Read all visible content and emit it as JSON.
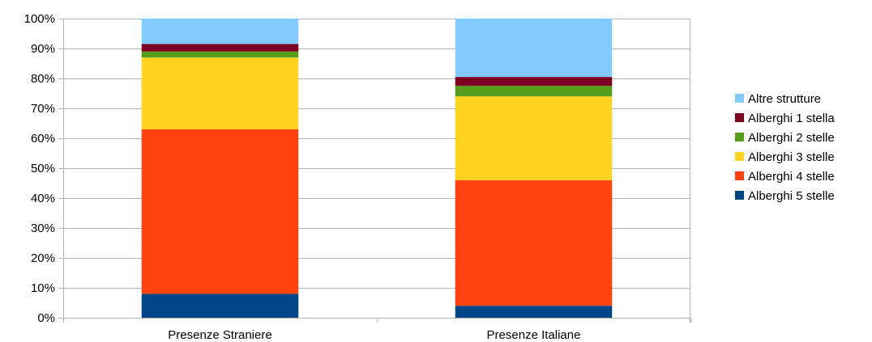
{
  "chart_data": {
    "type": "bar",
    "stacked": true,
    "normalized": true,
    "categories": [
      "Presenze Straniere",
      "Presenze Italiane"
    ],
    "series": [
      {
        "name": "Alberghi 5 stelle",
        "color": "#004586",
        "values": [
          8,
          4
        ]
      },
      {
        "name": "Alberghi 4 stelle",
        "color": "#ff420e",
        "values": [
          55,
          42
        ]
      },
      {
        "name": "Alberghi 3 stelle",
        "color": "#ffd320",
        "values": [
          24,
          28
        ]
      },
      {
        "name": "Alberghi 2 stelle",
        "color": "#579d1c",
        "values": [
          2,
          3.5
        ]
      },
      {
        "name": "Alberghi 1 stella",
        "color": "#7e0021",
        "values": [
          2.5,
          3
        ]
      },
      {
        "name": "Altre strutture",
        "color": "#83caff",
        "values": [
          8.5,
          19.5
        ]
      }
    ],
    "y_ticks": [
      "0%",
      "10%",
      "20%",
      "30%",
      "40%",
      "50%",
      "60%",
      "70%",
      "80%",
      "90%",
      "100%"
    ],
    "ylim": [
      0,
      100
    ],
    "grid": true,
    "legend_position": "right",
    "legend_order": [
      "Altre strutture",
      "Alberghi 1 stella",
      "Alberghi 2 stelle",
      "Alberghi 3 stelle",
      "Alberghi 4 stelle",
      "Alberghi 5 stelle"
    ]
  }
}
